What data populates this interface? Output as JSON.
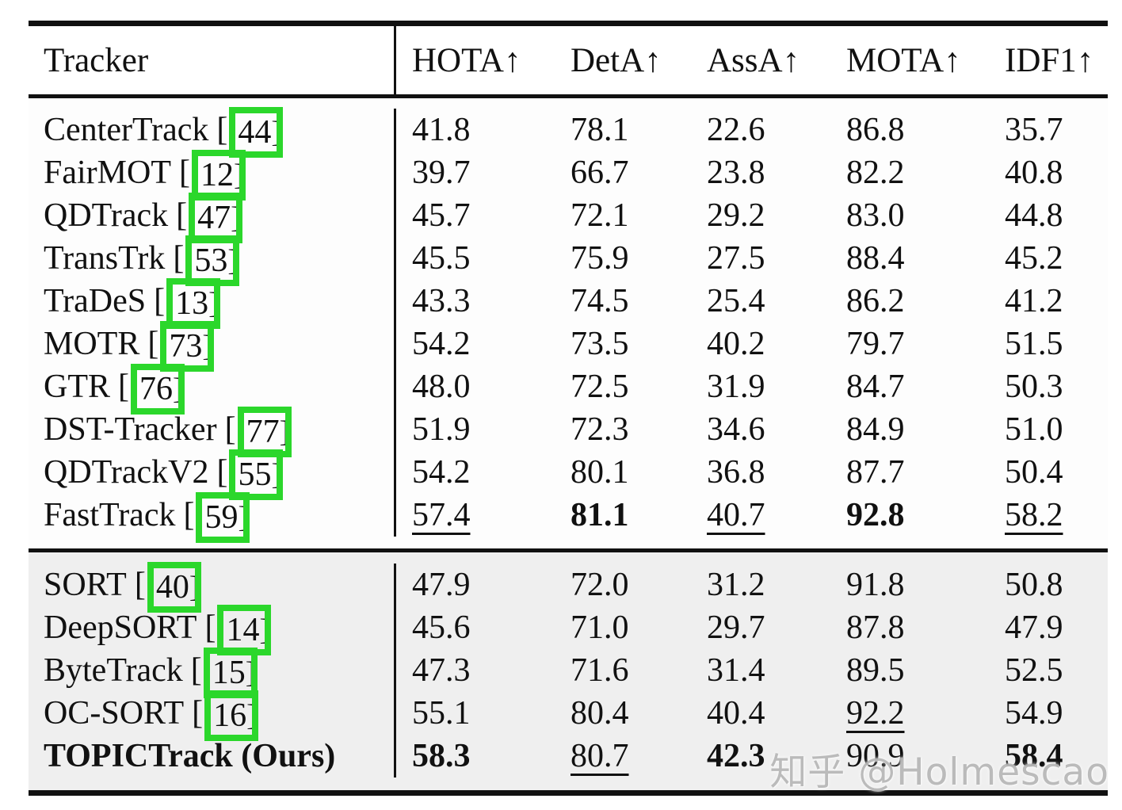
{
  "header": {
    "tracker_label": "Tracker",
    "columns": [
      "HOTA↑",
      "DetA↑",
      "AssA↑",
      "MOTA↑",
      "IDF1↑"
    ]
  },
  "table": {
    "sections": [
      {
        "id": "upper",
        "rows": [
          {
            "name": "CenterTrack",
            "cite": "44",
            "values": [
              "41.8",
              "78.1",
              "22.6",
              "86.8",
              "35.7"
            ],
            "styles": [
              "",
              "",
              "",
              "",
              ""
            ]
          },
          {
            "name": "FairMOT",
            "cite": "12",
            "values": [
              "39.7",
              "66.7",
              "23.8",
              "82.2",
              "40.8"
            ],
            "styles": [
              "",
              "",
              "",
              "",
              ""
            ]
          },
          {
            "name": "QDTrack",
            "cite": "47",
            "values": [
              "45.7",
              "72.1",
              "29.2",
              "83.0",
              "44.8"
            ],
            "styles": [
              "",
              "",
              "",
              "",
              ""
            ]
          },
          {
            "name": "TransTrk",
            "cite": "53",
            "values": [
              "45.5",
              "75.9",
              "27.5",
              "88.4",
              "45.2"
            ],
            "styles": [
              "",
              "",
              "",
              "",
              ""
            ]
          },
          {
            "name": "TraDeS",
            "cite": "13",
            "values": [
              "43.3",
              "74.5",
              "25.4",
              "86.2",
              "41.2"
            ],
            "styles": [
              "",
              "",
              "",
              "",
              ""
            ]
          },
          {
            "name": "MOTR",
            "cite": "73",
            "values": [
              "54.2",
              "73.5",
              "40.2",
              "79.7",
              "51.5"
            ],
            "styles": [
              "",
              "",
              "",
              "",
              ""
            ]
          },
          {
            "name": "GTR",
            "cite": "76",
            "values": [
              "48.0",
              "72.5",
              "31.9",
              "84.7",
              "50.3"
            ],
            "styles": [
              "",
              "",
              "",
              "",
              ""
            ]
          },
          {
            "name": "DST-Tracker",
            "cite": "77",
            "values": [
              "51.9",
              "72.3",
              "34.6",
              "84.9",
              "51.0"
            ],
            "styles": [
              "",
              "",
              "",
              "",
              ""
            ]
          },
          {
            "name": "QDTrackV2",
            "cite": "55",
            "values": [
              "54.2",
              "80.1",
              "36.8",
              "87.7",
              "50.4"
            ],
            "styles": [
              "",
              "",
              "",
              "",
              ""
            ]
          },
          {
            "name": "FastTrack",
            "cite": "59",
            "values": [
              "57.4",
              "81.1",
              "40.7",
              "92.8",
              "58.2"
            ],
            "styles": [
              "u",
              "b",
              "u",
              "b",
              "u"
            ]
          }
        ]
      },
      {
        "id": "lower",
        "rows": [
          {
            "name": "SORT",
            "cite": "40",
            "values": [
              "47.9",
              "72.0",
              "31.2",
              "91.8",
              "50.8"
            ],
            "styles": [
              "",
              "",
              "",
              "",
              ""
            ]
          },
          {
            "name": "DeepSORT",
            "cite": "14",
            "values": [
              "45.6",
              "71.0",
              "29.7",
              "87.8",
              "47.9"
            ],
            "styles": [
              "",
              "",
              "",
              "",
              ""
            ]
          },
          {
            "name": "ByteTrack",
            "cite": "15",
            "values": [
              "47.3",
              "71.6",
              "31.4",
              "89.5",
              "52.5"
            ],
            "styles": [
              "",
              "",
              "",
              "",
              ""
            ]
          },
          {
            "name": "OC-SORT",
            "cite": "16",
            "values": [
              "55.1",
              "80.4",
              "40.4",
              "92.2",
              "54.9"
            ],
            "styles": [
              "",
              "",
              "",
              "u",
              ""
            ]
          },
          {
            "name": "TOPICTrack (Ours)",
            "cite": null,
            "name_bold": true,
            "values": [
              "58.3",
              "80.7",
              "42.3",
              "90.9",
              "58.4"
            ],
            "styles": [
              "b",
              "u",
              "b",
              "",
              "b"
            ]
          }
        ]
      }
    ],
    "open_bracket": "[",
    "close_bracket": "]"
  },
  "watermark": "知乎 @Holmescao",
  "colors": {
    "annotation_green": "#2bd72b",
    "lower_section_bg": "#efefef",
    "rule_black": "#111111"
  }
}
